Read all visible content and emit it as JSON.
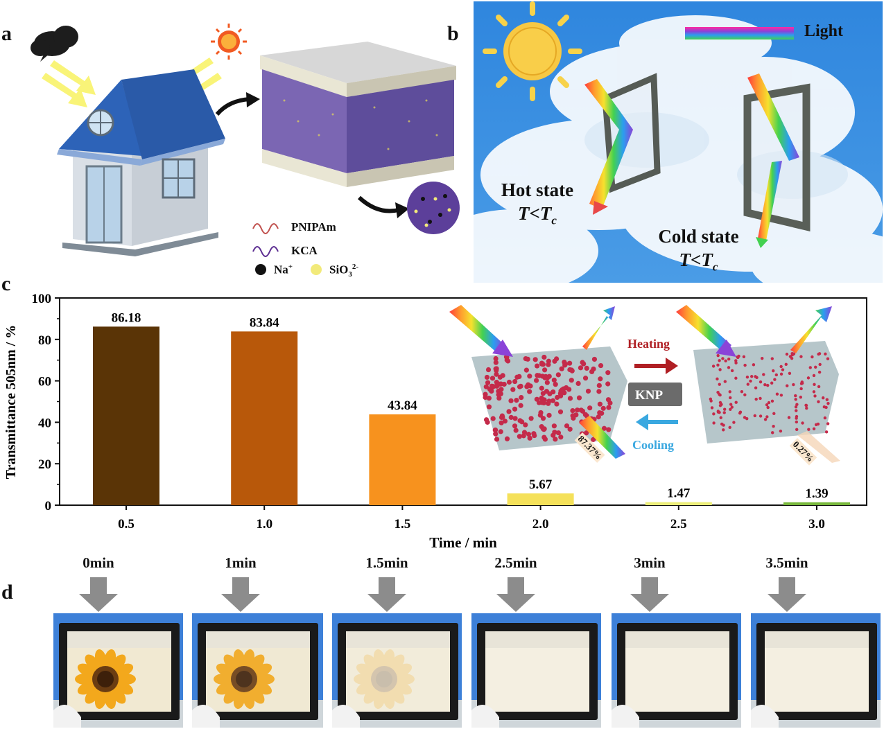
{
  "panels": {
    "a": "a",
    "b": "b",
    "c": "c",
    "d": "d"
  },
  "panel_a": {
    "legend": {
      "pnipam": "PNIPAm",
      "kca": "KCA",
      "na": "Na",
      "na_sup": "+",
      "sio": "SiO",
      "sio_sub": "3",
      "sio_sup": "2-"
    },
    "colors": {
      "pnipam": "#c0504d",
      "kca": "#5b2c91",
      "na": "#111111",
      "sio": "#f2ea7a"
    }
  },
  "panel_b": {
    "legend_label": "Light",
    "hot_state": "Hot state",
    "hot_condition_prefix": "T<T",
    "hot_condition_sub": "c",
    "cold_state": "Cold state",
    "cold_condition_prefix": "T<T",
    "cold_condition_sub": "c"
  },
  "chart_data": {
    "type": "bar",
    "categories": [
      "0.5",
      "1.0",
      "1.5",
      "2.0",
      "2.5",
      "3.0"
    ],
    "values": [
      86.18,
      83.84,
      43.84,
      5.67,
      1.47,
      1.39
    ],
    "value_labels": [
      "86.18",
      "83.84",
      "43.84",
      "5.67",
      "1.47",
      "1.39"
    ],
    "bar_colors": [
      "#5a3406",
      "#b8580a",
      "#f7921e",
      "#f5e15a",
      "#ecee7a",
      "#78b83c"
    ],
    "xlabel": "Time / min",
    "ylabel": "Transmittance 505nm / %",
    "ylim": [
      0,
      100
    ],
    "yticks": [
      "0",
      "20",
      "40",
      "60",
      "80",
      "100"
    ],
    "grid": false,
    "inset": {
      "heating": "Heating",
      "cooling": "Cooling",
      "badge": "KNP",
      "left_percent": "87.37%",
      "right_percent": "0.27%"
    }
  },
  "panel_d": {
    "times": [
      "0min",
      "1min",
      "1.5min",
      "2.5min",
      "3min",
      "3.5min"
    ],
    "flower_opacity": [
      1,
      0.95,
      0.45,
      0,
      0,
      0
    ]
  }
}
